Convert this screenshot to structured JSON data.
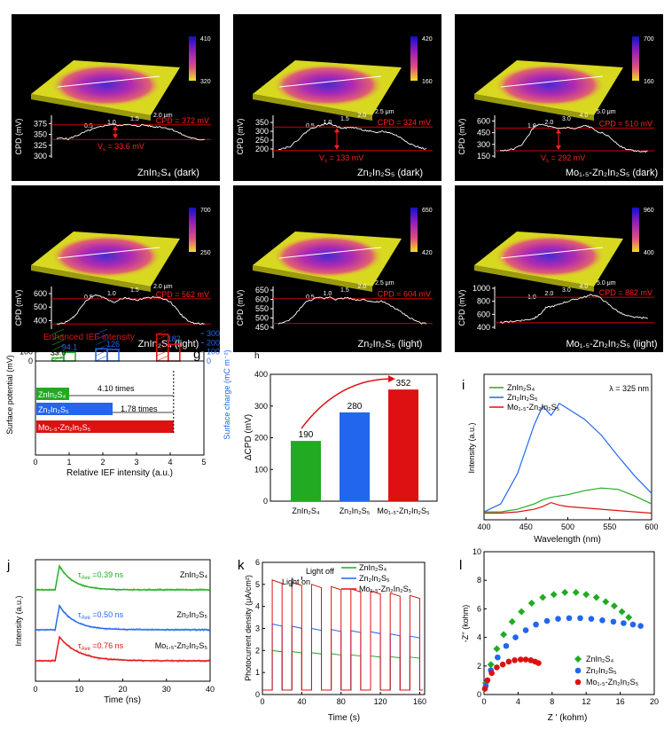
{
  "colors": {
    "znin2s4": "#22aa22",
    "zn2in2s5": "#2266ee",
    "mo": "#dd1111",
    "ref": "#cc0000",
    "axis": "#000000",
    "surface_low": "#d8d820",
    "surface_high": "#6a1fb0"
  },
  "chart_data": [
    {
      "panel": "a",
      "type": "line",
      "sample": "ZnIn₂S₄ (dark)",
      "ylabel": "CPD (mV)",
      "ylim": [
        300,
        390
      ],
      "yticks": [
        300,
        325,
        350,
        375
      ],
      "ytick_labels": [
        "300",
        "325",
        "350",
        "375"
      ],
      "profile": [
        340,
        342,
        339,
        345,
        350,
        356,
        361,
        365,
        369,
        372,
        373,
        370,
        374,
        371,
        369,
        372,
        370,
        367,
        368,
        365,
        362,
        356,
        349,
        344,
        340,
        338,
        339
      ],
      "upper_line": 372,
      "lower_line": 338.4,
      "upper_text": "CPD = 372 mV",
      "lower_text": "V",
      "lower_sub": "s",
      "lower_value": " = 33.6 mV",
      "scale_ticks": [
        "0.5",
        "1.0",
        "1.5",
        "2.0 μm"
      ],
      "color_bar": [
        "410",
        "320"
      ]
    },
    {
      "panel": "b",
      "type": "line",
      "sample": "Zn₂In₂S₅ (dark)",
      "ylabel": "CPD (mV)",
      "ylim": [
        160,
        380
      ],
      "yticks": [
        200,
        250,
        300,
        350
      ],
      "ytick_labels": [
        "200",
        "250",
        "300",
        "350"
      ],
      "profile": [
        200,
        205,
        215,
        240,
        270,
        300,
        320,
        330,
        340,
        345,
        330,
        320,
        318,
        322,
        315,
        305,
        300,
        290,
        300,
        295,
        285,
        270,
        250,
        230,
        215,
        205,
        200
      ],
      "upper_line": 324,
      "lower_line": 191,
      "upper_text": "CPD = 324 mV",
      "lower_text": "V",
      "lower_sub": "s",
      "lower_value": " = 133 mV",
      "scale_ticks": [
        "0.5",
        "1.0",
        "1.5",
        "2.0",
        "2.5 μm"
      ],
      "color_bar": [
        "420",
        "160"
      ]
    },
    {
      "panel": "c",
      "type": "line",
      "sample": "Mo₁.₅-Zn₂In₂S₅ (dark)",
      "ylabel": "CPD (mV)",
      "ylim": [
        150,
        650
      ],
      "yticks": [
        150,
        300,
        450,
        600
      ],
      "ytick_labels": [
        "150",
        "300",
        "450",
        "600"
      ],
      "profile": [
        220,
        225,
        235,
        260,
        310,
        420,
        530,
        560,
        540,
        520,
        500,
        510,
        515,
        495,
        520,
        540,
        510,
        470,
        440,
        400,
        340,
        280,
        240,
        225,
        215,
        212,
        210
      ],
      "upper_line": 510,
      "lower_line": 218,
      "upper_text": "CPD = 510 mV",
      "lower_text": "V",
      "lower_sub": "s",
      "lower_value": " = 292 mV",
      "scale_ticks": [
        "1.0",
        "2.0",
        "3.0",
        "4.0",
        "5.0 μm"
      ],
      "color_bar": [
        "700",
        "160"
      ]
    },
    {
      "panel": "d",
      "type": "line",
      "sample": "ZnIn₂S₄ (light)",
      "ylabel": "CPD (mV)",
      "ylim": [
        350,
        640
      ],
      "yticks": [
        400,
        500,
        600
      ],
      "ytick_labels": [
        "400",
        "500",
        "600"
      ],
      "profile": [
        375,
        380,
        395,
        430,
        480,
        540,
        575,
        590,
        575,
        555,
        535,
        560,
        570,
        560,
        550,
        565,
        570,
        575,
        565,
        560,
        530,
        480,
        430,
        395,
        380,
        376,
        375
      ],
      "upper_line": 562,
      "lower_line": 375,
      "upper_text": "CPD = 562 mV",
      "scale_ticks": [
        "0.5",
        "1.0",
        "1.5",
        "2.0 μm"
      ],
      "color_bar": [
        "700",
        "250"
      ]
    },
    {
      "panel": "e",
      "type": "line",
      "sample": "Zn₂In₂S₅ (light)",
      "ylabel": "CPD (mV)",
      "ylim": [
        450,
        660
      ],
      "yticks": [
        450,
        500,
        550,
        600,
        650
      ],
      "ytick_labels": [
        "450",
        "500",
        "550",
        "600",
        "650"
      ],
      "profile": [
        470,
        475,
        490,
        520,
        560,
        590,
        600,
        610,
        605,
        615,
        600,
        605,
        610,
        600,
        595,
        600,
        590,
        585,
        590,
        575,
        560,
        540,
        520,
        500,
        485,
        472,
        468
      ],
      "upper_line": 604,
      "lower_line": 471,
      "upper_text": "CPD = 604 mV",
      "scale_ticks": [
        "0.5",
        "1.0",
        "1.5",
        "2.0",
        "2.5 μm"
      ],
      "color_bar": [
        "650",
        "420"
      ]
    },
    {
      "panel": "f",
      "type": "line",
      "sample": "Mo₁.₅-Zn₂In₂S₅ (light)",
      "ylabel": "CPD (mV)",
      "ylim": [
        400,
        1000
      ],
      "yticks": [
        400,
        600,
        800,
        1000
      ],
      "ytick_labels": [
        "400",
        "600",
        "800",
        "1000"
      ],
      "profile": [
        470,
        480,
        490,
        500,
        510,
        520,
        540,
        600,
        700,
        720,
        740,
        780,
        800,
        830,
        850,
        870,
        900,
        880,
        820,
        750,
        680,
        620,
        580,
        560,
        550,
        545,
        540
      ],
      "upper_line": 862,
      "lower_line": 470,
      "upper_text": "CPD = 862 mV",
      "scale_ticks": [
        "1.0",
        "2.0",
        "3.0",
        "4.0",
        "5.0 μm"
      ],
      "color_bar": [
        "960",
        "400"
      ]
    },
    {
      "panel": "g",
      "type": "bar",
      "title": "Enhanced IEF intensity",
      "ylabel_left": "Surface potential (mV)",
      "ylabel_right": "Surface charge (mC m⁻²)",
      "xlabel": "Relative IEF intensity (a.u.)",
      "ylim_left": [
        0,
        300
      ],
      "yticks_left": [
        "0",
        "100",
        "200",
        "300"
      ],
      "ylim_right": [
        0,
        300
      ],
      "yticks_right": [
        "0",
        "100",
        "200",
        "300"
      ],
      "xlim": [
        0,
        5
      ],
      "xticks": [
        "0",
        "1",
        "2",
        "3",
        "4",
        "5"
      ],
      "bars": [
        {
          "sample": "ZnIn₂S₄",
          "potential": 33.6,
          "charge": 94.1,
          "color": "#22aa22"
        },
        {
          "sample": "Zn₂In₂S₅",
          "potential": 133,
          "charge": 126,
          "color": "#2266ee"
        },
        {
          "sample": "Mo₁.₅-Zn₂In₂S₅",
          "potential": 292,
          "charge": 182,
          "color": "#dd1111"
        }
      ],
      "potential_labels": [
        "33.6",
        "133",
        "292"
      ],
      "charge_labels": [
        "94.1",
        "126",
        "182"
      ],
      "ief": [
        {
          "label": "ZnIn₂S₄",
          "value": 1.0
        },
        {
          "label": "Zn₂In₂S₅",
          "value": 2.29
        },
        {
          "label": "Mo₁.₅-Zn₂In₂S₅",
          "value": 4.1
        }
      ],
      "ratio_labels": [
        "4.10 times",
        "1.78 times"
      ]
    },
    {
      "panel": "h",
      "type": "bar",
      "ylabel": "ΔCPD (mV)",
      "ylim": [
        0,
        400
      ],
      "yticks": [
        "0",
        "100",
        "200",
        "300",
        "400"
      ],
      "categories": [
        "ZnIn₂S₄",
        "Zn₂In₂S₅",
        "Mo₁.₅-Zn₂In₂S₅"
      ],
      "values": [
        190,
        280,
        352
      ],
      "value_labels": [
        "190",
        "280",
        "352"
      ]
    },
    {
      "panel": "i",
      "type": "line",
      "annotation": "λ = 325 nm",
      "xlabel": "Wavelength (nm)",
      "ylabel": "Intensity (a.u.)",
      "xlim": [
        400,
        600
      ],
      "xticks": [
        "400",
        "450",
        "500",
        "550",
        "600"
      ],
      "ylim": [
        0,
        1.1
      ],
      "x": [
        400,
        420,
        440,
        460,
        470,
        480,
        490,
        500,
        520,
        540,
        560,
        580,
        600
      ],
      "series": [
        {
          "name": "ZnIn₂S₄",
          "values": [
            0.06,
            0.06,
            0.08,
            0.12,
            0.15,
            0.17,
            0.18,
            0.19,
            0.22,
            0.24,
            0.23,
            0.18,
            0.12
          ]
        },
        {
          "name": "Zn₂In₂S₅",
          "values": [
            0.06,
            0.12,
            0.35,
            0.72,
            0.86,
            0.79,
            0.88,
            0.84,
            0.76,
            0.64,
            0.48,
            0.33,
            0.2
          ]
        },
        {
          "name": "Mo₁.₅-Zn₂In₂S₅",
          "values": [
            0.05,
            0.05,
            0.06,
            0.08,
            0.1,
            0.13,
            0.11,
            0.1,
            0.09,
            0.08,
            0.07,
            0.06,
            0.05
          ]
        }
      ]
    },
    {
      "panel": "j",
      "type": "line",
      "xlabel": "Time (ns)",
      "ylabel": "Intensity (a.u.)",
      "xlim": [
        0,
        40
      ],
      "xticks": [
        "0",
        "10",
        "20",
        "30",
        "40"
      ],
      "series": [
        {
          "name": "ZnIn₂S₄",
          "tau_label": "τ",
          "tau_sub": "Ave",
          "tau_value": " =0.39 ns",
          "tau": 0.39
        },
        {
          "name": "Zn₂In₂S₅",
          "tau_label": "τ",
          "tau_sub": "Ave",
          "tau_value": " =0.50 ns",
          "tau": 0.5
        },
        {
          "name": "Mo₁.₅-Zn₂In₂S₅",
          "tau_label": "τ",
          "tau_sub": "Ave",
          "tau_value": " =0.76 ns",
          "tau": 0.76
        }
      ]
    },
    {
      "panel": "k",
      "type": "line",
      "xlabel": "Time (s)",
      "ylabel": "Photocurrent density (μA/cm²)",
      "xlim": [
        0,
        165
      ],
      "xticks": [
        "0",
        "40",
        "80",
        "120",
        "160"
      ],
      "ylim": [
        0,
        6
      ],
      "yticks": [
        "0",
        "1",
        "2",
        "3",
        "4",
        "5",
        "6"
      ],
      "light_on_text": "Light on",
      "light_off_text": "Light off",
      "on_times": [
        10,
        30,
        50,
        70,
        90,
        110,
        130,
        150
      ],
      "pulse_width": 10,
      "series": [
        {
          "name": "ZnIn₂S₄",
          "levels": [
            2.0,
            1.95,
            1.9,
            1.85,
            1.8,
            1.75,
            1.72,
            1.7
          ]
        },
        {
          "name": "Zn₂In₂S₅",
          "levels": [
            3.2,
            3.1,
            3.0,
            2.95,
            2.9,
            2.85,
            2.75,
            2.65
          ]
        },
        {
          "name": "Mo₁.₅-Zn₂In₂S₅",
          "levels": [
            5.2,
            5.1,
            5.0,
            4.9,
            4.8,
            4.7,
            4.6,
            4.5
          ]
        }
      ]
    },
    {
      "panel": "l",
      "type": "scatter",
      "xlabel": "Z ' (kohm)",
      "ylabel": "-Z'' (kohm)",
      "xlim": [
        0,
        20
      ],
      "xticks": [
        "0",
        "4",
        "8",
        "12",
        "16",
        "20"
      ],
      "ylim": [
        0,
        10
      ],
      "yticks": [
        "0",
        "2",
        "4",
        "6",
        "8",
        "10"
      ],
      "series": [
        {
          "name": "ZnIn₂S₄",
          "x": [
            0.2,
            0.8,
            1.5,
            2.3,
            3.3,
            4.4,
            5.6,
            6.9,
            8.2,
            9.5,
            10.8,
            12.0,
            13.2,
            14.3,
            15.3,
            16.2,
            17.0
          ],
          "y": [
            0.8,
            2.1,
            3.2,
            4.2,
            5.1,
            5.8,
            6.4,
            6.8,
            7.0,
            7.15,
            7.15,
            7.0,
            6.8,
            6.5,
            6.2,
            5.8,
            5.4
          ]
        },
        {
          "name": "Zn₂In₂S₅",
          "x": [
            0.2,
            0.8,
            1.6,
            2.6,
            3.7,
            4.9,
            6.1,
            7.4,
            8.7,
            10.0,
            11.3,
            12.6,
            13.9,
            15.2,
            16.4,
            17.5,
            18.4
          ],
          "y": [
            0.6,
            1.7,
            2.6,
            3.4,
            4.0,
            4.5,
            4.9,
            5.15,
            5.3,
            5.35,
            5.35,
            5.3,
            5.2,
            5.1,
            5.0,
            4.9,
            4.8
          ]
        },
        {
          "name": "Mo₁.₅-Zn₂In₂S₅",
          "x": [
            0.1,
            0.4,
            0.9,
            1.5,
            2.2,
            2.9,
            3.6,
            4.3,
            4.9,
            5.5,
            6.0,
            6.4
          ],
          "y": [
            0.4,
            1.0,
            1.5,
            1.9,
            2.1,
            2.3,
            2.4,
            2.45,
            2.45,
            2.4,
            2.3,
            2.2
          ]
        }
      ]
    }
  ]
}
